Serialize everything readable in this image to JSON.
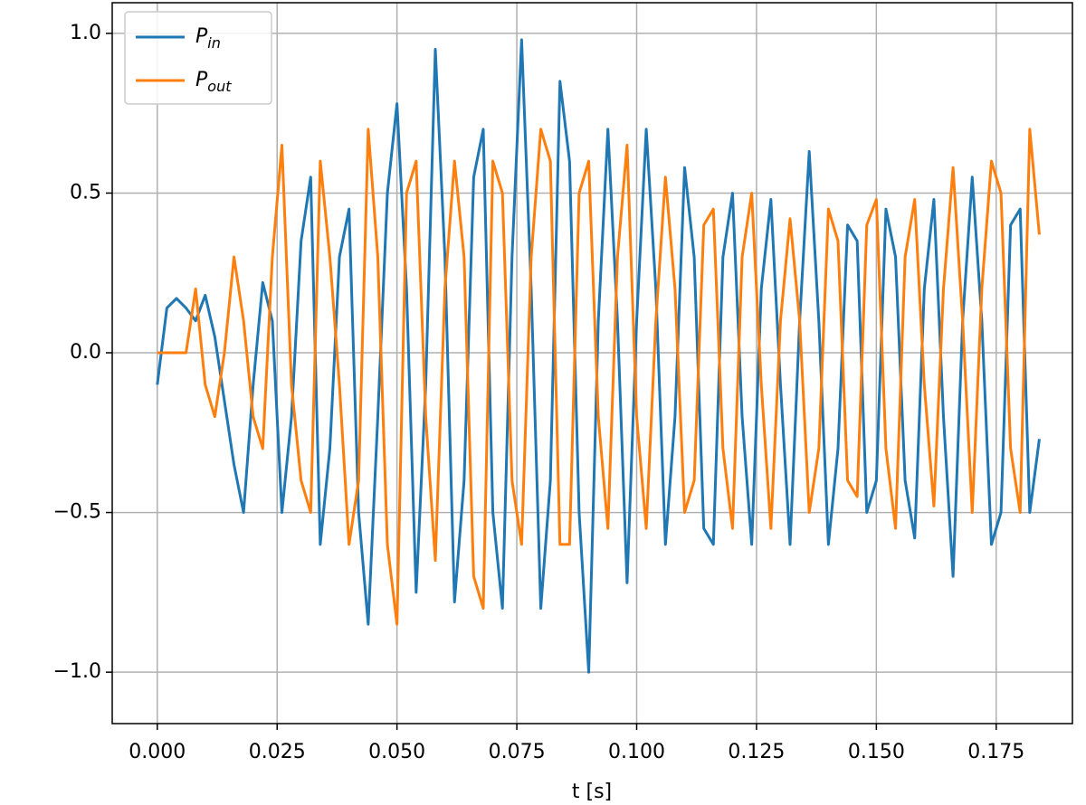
{
  "chart_data": {
    "type": "line",
    "xlabel": "t [s]",
    "x": [
      0,
      0.002,
      0.004,
      0.006,
      0.008,
      0.01,
      0.012,
      0.014,
      0.016,
      0.018,
      0.02,
      0.022,
      0.024,
      0.026,
      0.028,
      0.03,
      0.032,
      0.034,
      0.036,
      0.038,
      0.04,
      0.042,
      0.044,
      0.046,
      0.048,
      0.05,
      0.052,
      0.054,
      0.056,
      0.058,
      0.06,
      0.062,
      0.064,
      0.066,
      0.068,
      0.07,
      0.072,
      0.074,
      0.076,
      0.078,
      0.08,
      0.082,
      0.084,
      0.086,
      0.088,
      0.09,
      0.092,
      0.094,
      0.096,
      0.098,
      0.1,
      0.102,
      0.104,
      0.106,
      0.108,
      0.11,
      0.112,
      0.114,
      0.116,
      0.118,
      0.12,
      0.122,
      0.124,
      0.126,
      0.128,
      0.13,
      0.132,
      0.134,
      0.136,
      0.138,
      0.14,
      0.142,
      0.144,
      0.146,
      0.148,
      0.15,
      0.152,
      0.154,
      0.156,
      0.158,
      0.16,
      0.162,
      0.164,
      0.166,
      0.168,
      0.17,
      0.172,
      0.174,
      0.176,
      0.178,
      0.18,
      0.182,
      0.184
    ],
    "series": [
      {
        "name": "P",
        "subscript": "in",
        "color": "#1f77b4",
        "values": [
          -0.1,
          0.14,
          0.17,
          0.14,
          0.1,
          0.18,
          0.05,
          -0.15,
          -0.35,
          -0.5,
          -0.1,
          0.22,
          0.1,
          -0.5,
          -0.2,
          0.35,
          0.55,
          -0.6,
          -0.3,
          0.3,
          0.45,
          -0.5,
          -0.85,
          -0.2,
          0.5,
          0.78,
          0.2,
          -0.75,
          -0.1,
          0.95,
          0.3,
          -0.78,
          -0.4,
          0.55,
          0.7,
          -0.5,
          -0.8,
          0.3,
          0.98,
          0.2,
          -0.8,
          -0.4,
          0.85,
          0.6,
          -0.5,
          -1.0,
          0.1,
          0.7,
          0.1,
          -0.72,
          0.1,
          0.7,
          0.2,
          -0.6,
          -0.2,
          0.58,
          0.3,
          -0.55,
          -0.6,
          0.3,
          0.5,
          -0.2,
          -0.6,
          0.2,
          0.48,
          -0.1,
          -0.6,
          0.1,
          0.63,
          0.1,
          -0.6,
          -0.3,
          0.4,
          0.35,
          -0.5,
          -0.4,
          0.45,
          0.3,
          -0.4,
          -0.58,
          0.2,
          0.48,
          -0.2,
          -0.7,
          0.1,
          0.55,
          0.1,
          -0.6,
          -0.5,
          0.4,
          0.45,
          -0.5,
          -0.27
        ]
      },
      {
        "name": "P",
        "subscript": "out",
        "color": "#ff7f0e",
        "values": [
          0,
          0,
          0,
          0,
          0.2,
          -0.1,
          -0.2,
          0.0,
          0.3,
          0.1,
          -0.2,
          -0.3,
          0.3,
          0.65,
          -0.1,
          -0.4,
          -0.5,
          0.6,
          0.3,
          -0.1,
          -0.6,
          -0.4,
          0.7,
          0.3,
          -0.6,
          -0.85,
          0.5,
          0.6,
          -0.2,
          -0.65,
          0.2,
          0.6,
          0.3,
          -0.7,
          -0.8,
          0.6,
          0.5,
          -0.4,
          -0.6,
          0.3,
          0.7,
          0.6,
          -0.6,
          -0.6,
          0.5,
          0.6,
          -0.2,
          -0.55,
          0.3,
          0.65,
          -0.2,
          -0.55,
          0.1,
          0.55,
          0.2,
          -0.5,
          -0.4,
          0.4,
          0.45,
          -0.3,
          -0.55,
          0.3,
          0.5,
          -0.1,
          -0.55,
          0.1,
          0.42,
          0.1,
          -0.5,
          -0.3,
          0.45,
          0.35,
          -0.4,
          -0.45,
          0.4,
          0.48,
          -0.3,
          -0.55,
          0.3,
          0.48,
          -0.1,
          -0.48,
          0.2,
          0.58,
          0.1,
          -0.5,
          0.2,
          0.6,
          0.5,
          -0.3,
          -0.5,
          0.7,
          0.37
        ]
      }
    ],
    "xlim": [
      -0.0094,
      0.1909
    ],
    "ylim": [
      -1.161,
      1.096
    ],
    "xticks": [
      {
        "value": 0,
        "label": "0.000"
      },
      {
        "value": 0.025,
        "label": "0.025"
      },
      {
        "value": 0.05,
        "label": "0.050"
      },
      {
        "value": 0.075,
        "label": "0.075"
      },
      {
        "value": 0.1,
        "label": "0.100"
      },
      {
        "value": 0.125,
        "label": "0.125"
      },
      {
        "value": 0.15,
        "label": "0.150"
      },
      {
        "value": 0.175,
        "label": "0.175"
      }
    ],
    "yticks": [
      {
        "value": -1,
        "label": "−1.0"
      },
      {
        "value": -0.5,
        "label": "−0.5"
      },
      {
        "value": 0,
        "label": "0.0"
      },
      {
        "value": 0.5,
        "label": "0.5"
      },
      {
        "value": 1,
        "label": "1.0"
      }
    ],
    "grid": true,
    "legend": "upper left"
  }
}
